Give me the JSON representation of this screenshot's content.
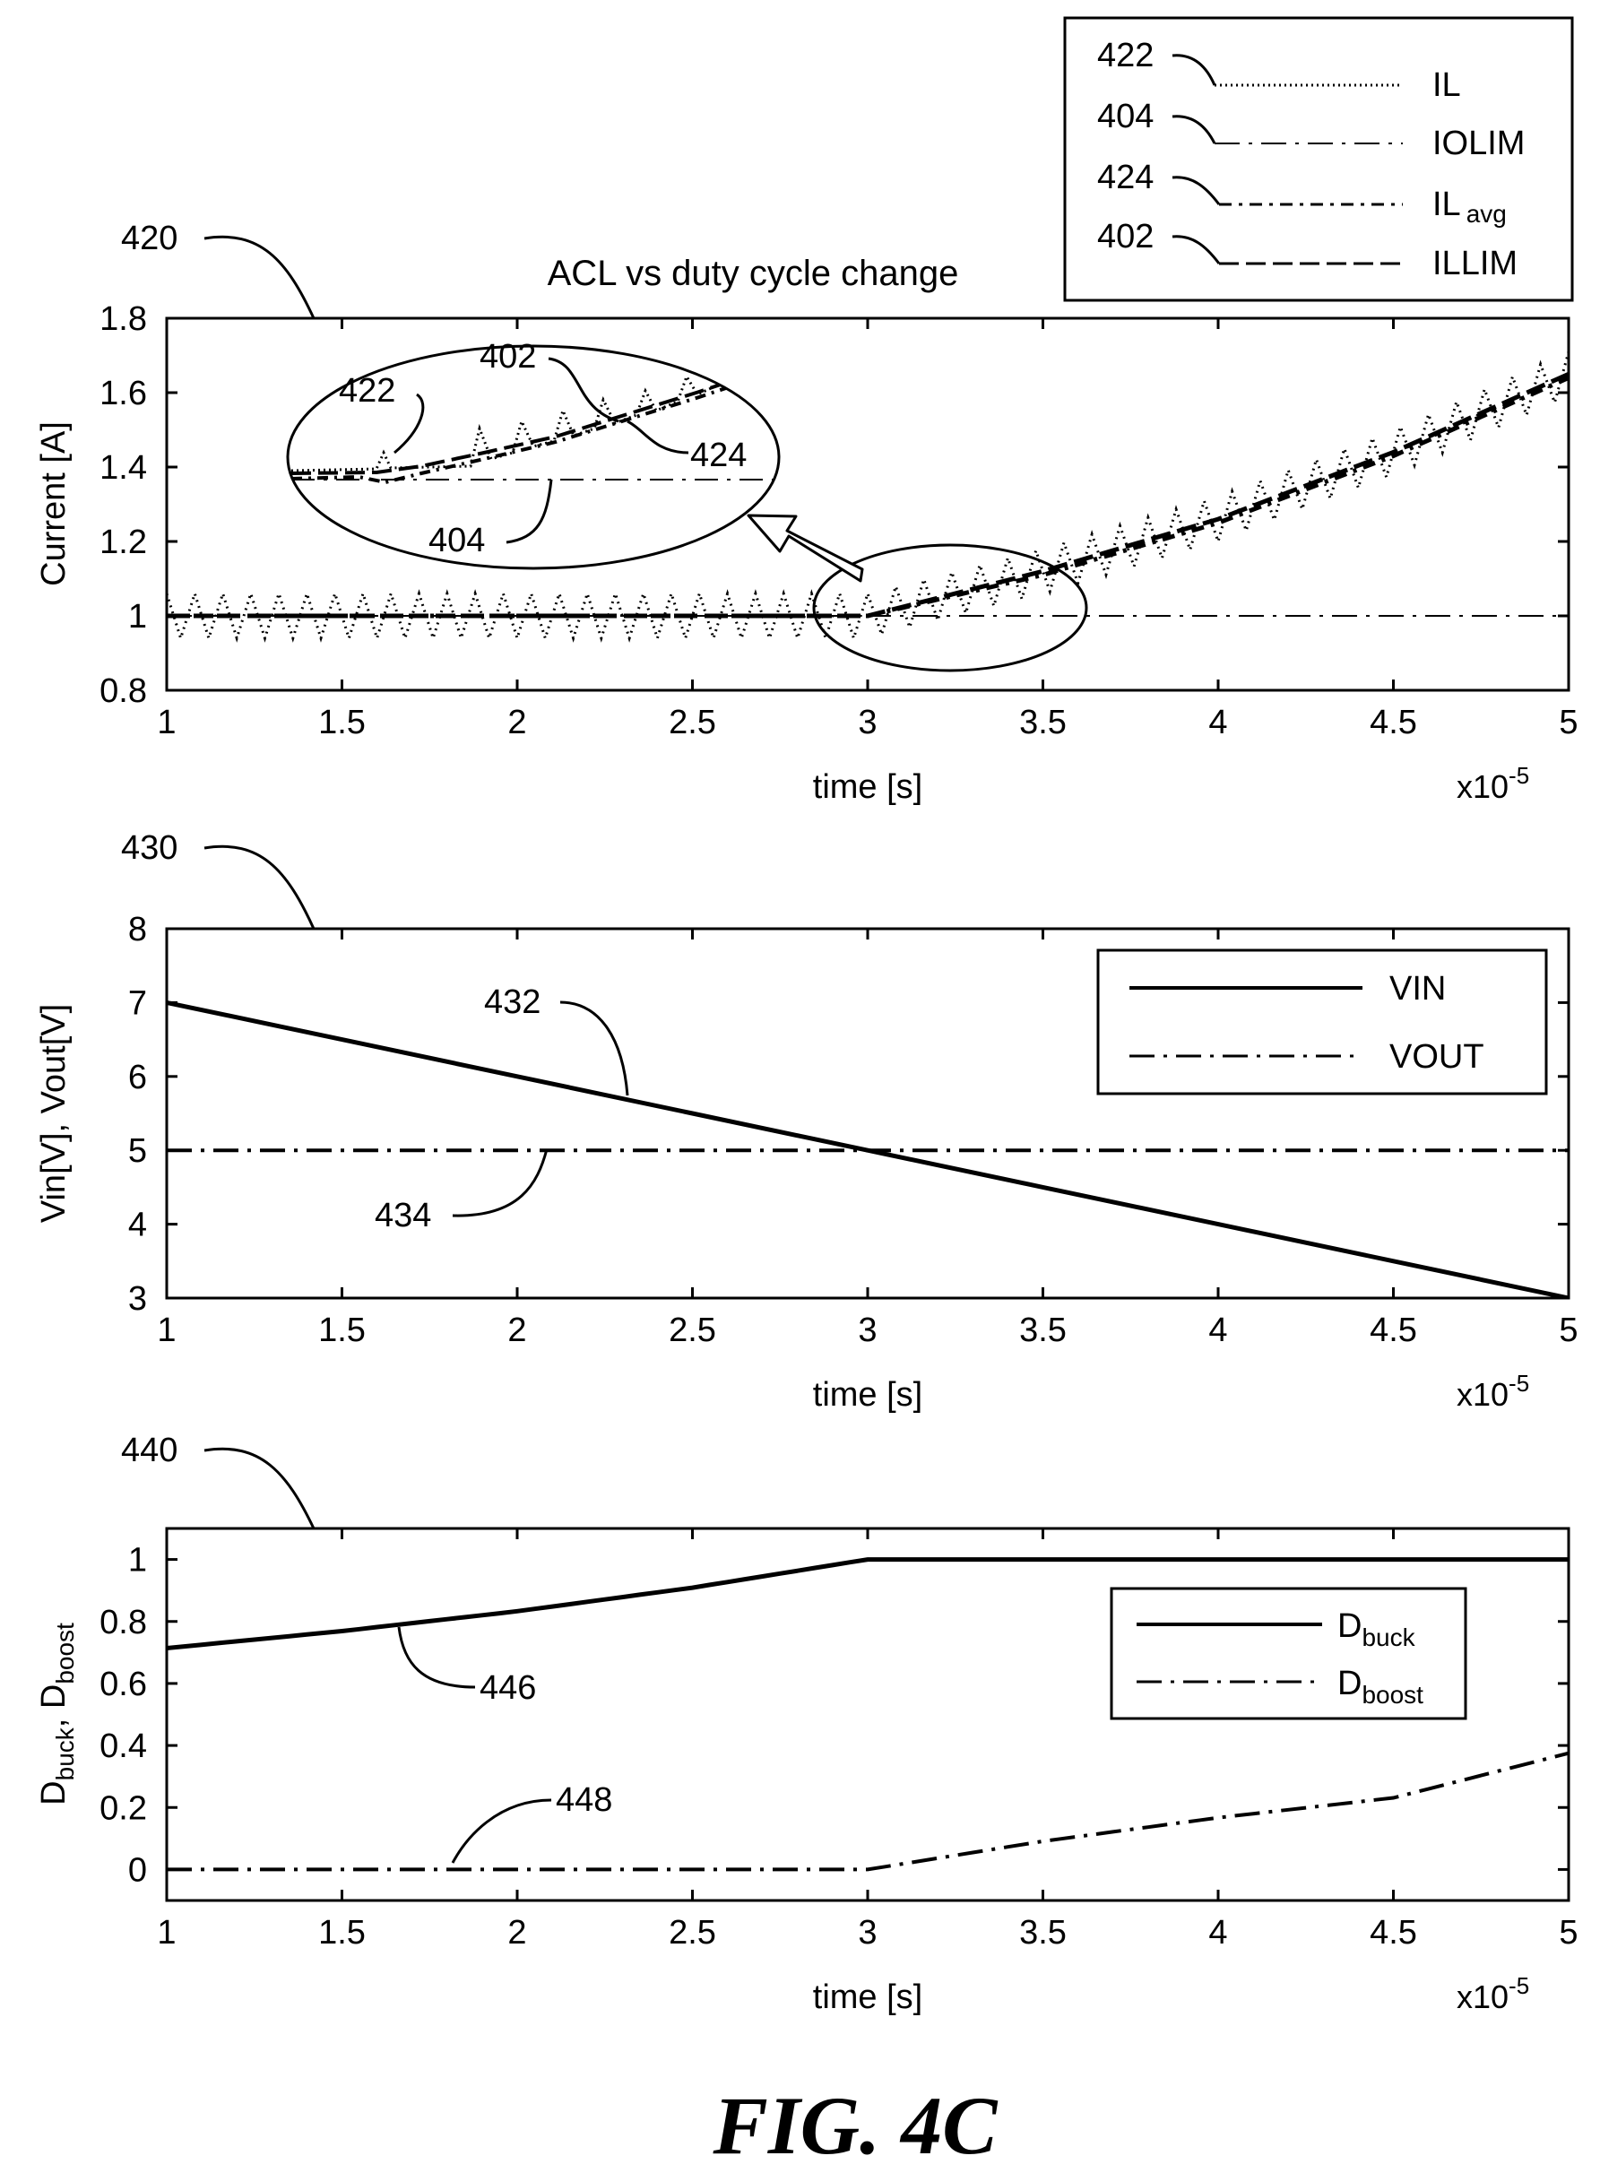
{
  "figure_label": "FIG. 4C",
  "chart_data": [
    {
      "type": "line",
      "ref": "420",
      "title": "ACL vs duty cycle change",
      "xlabel": "time [s]",
      "ylabel": "Current [A]",
      "x_exponent_label": "x10",
      "x_exponent": "-5",
      "xlim": [
        1,
        5
      ],
      "ylim": [
        0.8,
        1.8
      ],
      "xticks": [
        "1",
        "1.5",
        "2",
        "2.5",
        "3",
        "3.5",
        "4",
        "4.5",
        "5"
      ],
      "yticks": [
        "0.8",
        "1",
        "1.2",
        "1.4",
        "1.6",
        "1.8"
      ],
      "legend_placement": "outside-top-right",
      "legend": [
        {
          "ref": "422",
          "label": "IL",
          "sub": "",
          "style": "dotted"
        },
        {
          "ref": "404",
          "label": "IOLIM",
          "sub": "",
          "style": "long-dash-dot"
        },
        {
          "ref": "424",
          "label": "IL",
          "sub": "avg",
          "style": "dash-dot"
        },
        {
          "ref": "402",
          "label": "ILLIM",
          "sub": "",
          "style": "dashed"
        }
      ],
      "series": [
        {
          "name": "IL",
          "x": [
            1,
            1.5,
            2,
            2.5,
            3,
            3.5,
            4,
            4.5,
            5
          ],
          "y": [
            1.0,
            1.0,
            1.0,
            1.0,
            1.0,
            1.12,
            1.26,
            1.44,
            1.65
          ],
          "ripple_amplitude": 0.06
        },
        {
          "name": "IOLIM",
          "x": [
            1,
            5
          ],
          "y": [
            1.0,
            1.0
          ]
        },
        {
          "name": "ILavg",
          "x": [
            1,
            1.5,
            2,
            2.5,
            3,
            3.5,
            4,
            4.5,
            5
          ],
          "y": [
            1.0,
            1.0,
            1.0,
            1.0,
            1.0,
            1.11,
            1.25,
            1.43,
            1.64
          ]
        },
        {
          "name": "ILLIM",
          "x": [
            1,
            1.5,
            2,
            2.5,
            3,
            3.5,
            4,
            4.5,
            5
          ],
          "y": [
            1.0,
            1.0,
            1.0,
            1.0,
            1.0,
            1.12,
            1.26,
            1.44,
            1.65
          ]
        }
      ],
      "zoom_inset": {
        "refs": [
          "422",
          "402",
          "424",
          "404"
        ]
      }
    },
    {
      "type": "line",
      "ref": "430",
      "title": "",
      "xlabel": "time [s]",
      "ylabel": "Vin[V], Vout[V]",
      "x_exponent_label": "x10",
      "x_exponent": "-5",
      "xlim": [
        1,
        5
      ],
      "ylim": [
        3,
        8
      ],
      "xticks": [
        "1",
        "1.5",
        "2",
        "2.5",
        "3",
        "3.5",
        "4",
        "4.5",
        "5"
      ],
      "yticks": [
        "3",
        "4",
        "5",
        "6",
        "7",
        "8"
      ],
      "legend_placement": "upper-right",
      "legend": [
        {
          "label": "VIN",
          "sub": "",
          "style": "solid"
        },
        {
          "label": "VOUT",
          "sub": "",
          "style": "long-dash-dot"
        }
      ],
      "series": [
        {
          "name": "VIN",
          "ref": "432",
          "x": [
            1,
            5
          ],
          "y": [
            7,
            3
          ]
        },
        {
          "name": "VOUT",
          "ref": "434",
          "x": [
            1,
            5
          ],
          "y": [
            5,
            5
          ]
        }
      ]
    },
    {
      "type": "line",
      "ref": "440",
      "title": "",
      "xlabel": "time [s]",
      "ylabel": "D",
      "ylabel_sub1": "buck",
      "ylabel_mid": ", D",
      "ylabel_sub2": "boost",
      "x_exponent_label": "x10",
      "x_exponent": "-5",
      "xlim": [
        1,
        5
      ],
      "ylim": [
        -0.1,
        1.1
      ],
      "xticks": [
        "1",
        "1.5",
        "2",
        "2.5",
        "3",
        "3.5",
        "4",
        "4.5",
        "5"
      ],
      "yticks": [
        "0",
        "0.2",
        "0.4",
        "0.6",
        "0.8",
        "1"
      ],
      "legend_placement": "right",
      "legend": [
        {
          "label": "D",
          "sub": "buck",
          "style": "solid"
        },
        {
          "label": "D",
          "sub": "boost",
          "style": "long-dash-dot"
        }
      ],
      "series": [
        {
          "name": "Dbuck",
          "ref": "446",
          "x": [
            1,
            1.5,
            2,
            2.5,
            3,
            3.5,
            4,
            4.5,
            5
          ],
          "y": [
            0.714,
            0.769,
            0.833,
            0.909,
            1.0,
            1.0,
            1.0,
            1.0,
            1.0
          ]
        },
        {
          "name": "Dboost",
          "ref": "448",
          "x": [
            1,
            1.5,
            2,
            2.5,
            3,
            3.5,
            4,
            4.5,
            5
          ],
          "y": [
            0,
            0,
            0,
            0,
            0,
            0.091,
            0.167,
            0.231,
            0.375
          ]
        }
      ]
    }
  ]
}
